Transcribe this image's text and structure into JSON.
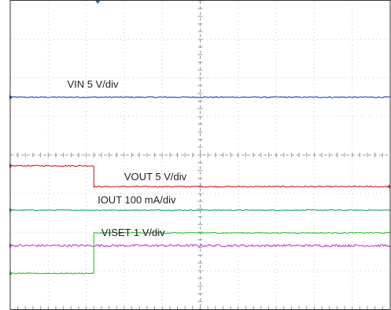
{
  "chart_data": {
    "type": "line",
    "title": "",
    "xlabel": "",
    "ylabel": "",
    "grid": true,
    "x_divisions": 10,
    "y_divisions": 8,
    "xlim": [
      0,
      10
    ],
    "ylim": [
      0,
      8
    ],
    "series": [
      {
        "name": "VIN 5 V/div",
        "color": "#1f3fbf",
        "x": [
          0,
          10
        ],
        "y": [
          5.5,
          5.5
        ],
        "noise": 0.015
      },
      {
        "name": "VOUT 5 V/div",
        "color": "#d42020",
        "x": [
          0,
          2.2,
          2.2,
          10
        ],
        "y": [
          3.72,
          3.72,
          3.18,
          3.18
        ],
        "noise": 0.015
      },
      {
        "name": "IOUT 100 mA/div",
        "color": "#1aa86a",
        "x": [
          0,
          10
        ],
        "y": [
          2.57,
          2.57
        ],
        "noise": 0.012
      },
      {
        "name": "VISET 1 V/div",
        "color": "#c43ccf",
        "x": [
          0,
          10
        ],
        "y": [
          1.65,
          1.65
        ],
        "noise": 0.03
      },
      {
        "name": "",
        "color": "#2ec02e",
        "x": [
          0,
          2.2,
          2.2,
          10
        ],
        "y": [
          0.93,
          0.93,
          1.98,
          1.98
        ],
        "noise": 0.012
      }
    ],
    "annotations": [
      {
        "text": "VIN 5 V/div",
        "x": 1.5,
        "y": 5.75
      },
      {
        "text": "VOUT 5 V/div",
        "x": 3.0,
        "y": 3.35
      },
      {
        "text": "IOUT 100 mA/div",
        "x": 2.3,
        "y": 2.75
      },
      {
        "text": "VISET 1 V/div",
        "x": 2.4,
        "y": 1.9
      }
    ]
  }
}
